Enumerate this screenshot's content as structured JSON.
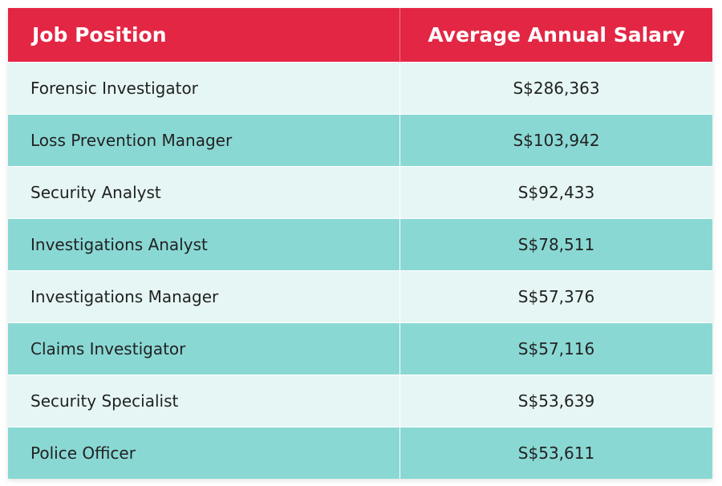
{
  "table": {
    "header": [
      "Job Position",
      "Average Annual Salary"
    ],
    "rows": [
      [
        "Forensic Investigator",
        "S$286,363"
      ],
      [
        "Loss Prevention Manager",
        "S$103,942"
      ],
      [
        "Security Analyst",
        "S$92,433"
      ],
      [
        "Investigations Analyst",
        "S$78,511"
      ],
      [
        "Investigations Manager",
        "S$57,376"
      ],
      [
        "Claims Investigator",
        "S$57,116"
      ],
      [
        "Security Specialist",
        "S$53,639"
      ],
      [
        "Police Officer",
        "S$53,611"
      ]
    ]
  }
}
